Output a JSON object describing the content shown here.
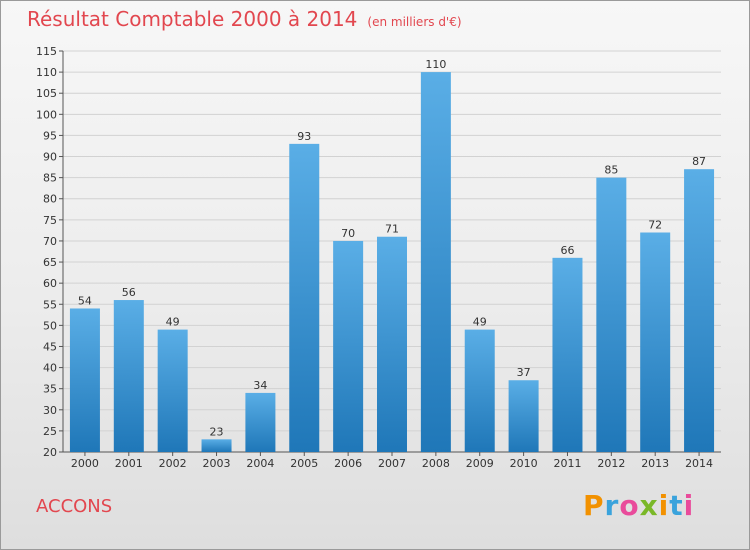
{
  "title": "Résultat Comptable 2000 à 2014",
  "subtitle": "(en milliers d'€)",
  "commune": "ACCONS",
  "brand": "Proxiti",
  "colors": {
    "title": "#e2474f",
    "bar_top": "#5aaee6",
    "bar_bottom": "#1f77b8"
  },
  "chart_data": {
    "type": "bar",
    "categories": [
      "2000",
      "2001",
      "2002",
      "2003",
      "2004",
      "2005",
      "2006",
      "2007",
      "2008",
      "2009",
      "2010",
      "2011",
      "2012",
      "2013",
      "2014"
    ],
    "values": [
      54,
      56,
      49,
      23,
      34,
      93,
      70,
      71,
      110,
      49,
      37,
      66,
      85,
      72,
      87
    ],
    "ylim": [
      20,
      115
    ],
    "yticks": [
      20,
      25,
      30,
      35,
      40,
      45,
      50,
      55,
      60,
      65,
      70,
      75,
      80,
      85,
      90,
      95,
      100,
      105,
      110,
      115
    ],
    "grid": true,
    "legend": "none"
  }
}
